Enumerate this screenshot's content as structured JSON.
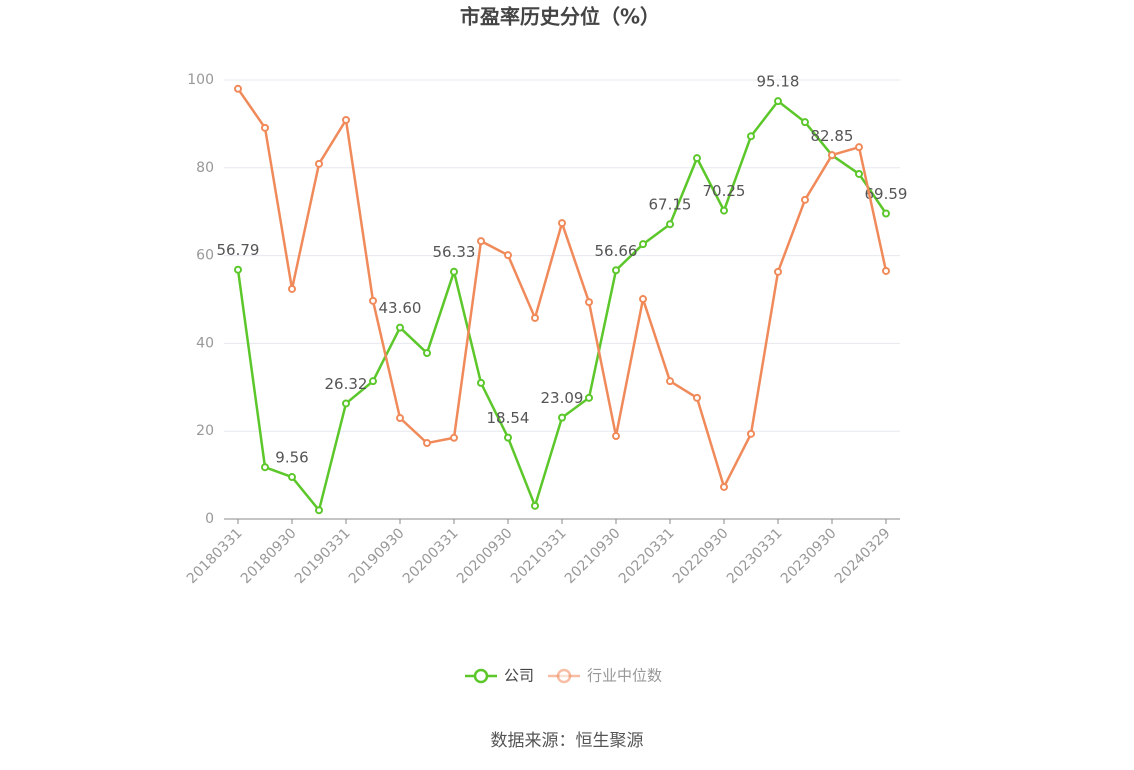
{
  "chart_data": {
    "type": "line",
    "title": "市盈率历史分位（%）",
    "categories": [
      "20180331",
      null,
      "20180930",
      null,
      "20190331",
      null,
      "20190930",
      null,
      "20200331",
      null,
      "20200930",
      null,
      "20210331",
      null,
      "20210930",
      null,
      "20220331",
      null,
      "20220930",
      null,
      "20230331",
      null,
      "20230930",
      null,
      "20240329"
    ],
    "series": [
      {
        "name": "公司",
        "color": "#5cc72a",
        "values": [
          56.79,
          11.8,
          9.56,
          2.0,
          26.32,
          31.4,
          43.6,
          37.8,
          56.33,
          31.0,
          18.54,
          3.0,
          23.09,
          27.6,
          56.66,
          62.6,
          67.15,
          82.2,
          70.25,
          87.2,
          95.18,
          90.4,
          82.85,
          78.6,
          69.59
        ],
        "value_labels": [
          "56.79",
          null,
          "9.56",
          null,
          "26.32",
          null,
          "43.60",
          null,
          "56.33",
          null,
          "18.54",
          null,
          "23.09",
          null,
          "56.66",
          null,
          "67.15",
          null,
          "70.25",
          null,
          "95.18",
          null,
          "82.85",
          null,
          "69.59"
        ]
      },
      {
        "name": "行业中位数",
        "color": "#f08a5a",
        "values": [
          98.0,
          89.1,
          52.4,
          80.9,
          90.9,
          49.7,
          23.0,
          17.3,
          18.5,
          63.3,
          60.1,
          45.8,
          67.4,
          49.4,
          18.9,
          50.1,
          31.4,
          27.6,
          7.3,
          19.4,
          56.3,
          72.7,
          82.9,
          84.7,
          56.5
        ]
      }
    ],
    "ylim": [
      0,
      100
    ],
    "yticks": [
      0,
      20,
      40,
      60,
      80,
      100
    ],
    "grid": true,
    "legend": "bottom",
    "source": "数据来源：恒生聚源"
  }
}
